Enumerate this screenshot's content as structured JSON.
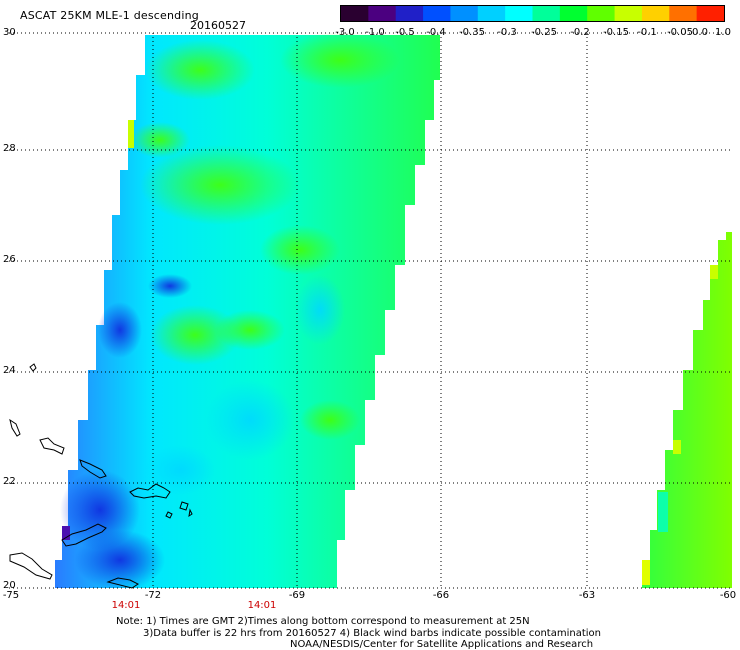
{
  "header": {
    "title": "ASCAT 25KM MLE-1 descending",
    "date": "20160527"
  },
  "colorbar": {
    "labels": [
      "-3.0",
      "-1.0",
      "-0.5",
      "-0.4",
      "-0.35",
      "-0.3",
      "-0.25",
      "-0.2",
      "-0.15",
      "-0.1",
      "-0.05",
      "0.0",
      "1.0"
    ],
    "colors": [
      "#2a0030",
      "#4b0080",
      "#2020c8",
      "#0050ff",
      "#0090ff",
      "#00d0ff",
      "#00ffff",
      "#00ff9a",
      "#00ff30",
      "#60ff00",
      "#c8ff00",
      "#ffd000",
      "#ff7000",
      "#ff2000"
    ]
  },
  "axes": {
    "lat_labels": [
      "30",
      "28",
      "26",
      "24",
      "22",
      "20"
    ],
    "lon_labels": [
      "-75",
      "-72",
      "-69",
      "-66",
      "-63",
      "-60"
    ],
    "time_labels": [
      "14:01",
      "14:01"
    ]
  },
  "notes": {
    "line1": "Note: 1) Times are GMT 2)Times along bottom correspond to measurement at 25N",
    "line2": "3)Data buffer is 22 hrs from 20160527 4) Black wind barbs indicate possible contamination",
    "line3": "NOAA/NESDIS/Center for Satellite Applications and Research"
  },
  "map_data": {
    "lat_range": [
      20,
      30
    ],
    "lon_range": [
      -75,
      -60
    ],
    "swaths": [
      "left swath (approx -74 to -66)",
      "right swath (approx -61.5 to -60)"
    ],
    "dominant_mle_range": "-0.3 to -0.15"
  }
}
